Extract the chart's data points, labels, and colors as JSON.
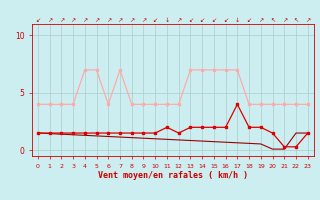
{
  "hours": [
    0,
    1,
    2,
    3,
    4,
    5,
    6,
    7,
    8,
    9,
    10,
    11,
    12,
    13,
    14,
    15,
    16,
    17,
    18,
    19,
    20,
    21,
    22,
    23
  ],
  "rafales": [
    4,
    4,
    4,
    4,
    7,
    7,
    4,
    7,
    4,
    4,
    4,
    4,
    4,
    7,
    7,
    7,
    7,
    7,
    4,
    4,
    4,
    4,
    4,
    4
  ],
  "vent_moyen": [
    1.5,
    1.5,
    1.5,
    1.5,
    1.5,
    1.5,
    1.5,
    1.5,
    1.5,
    1.5,
    1.5,
    2,
    1.5,
    2,
    2,
    2,
    2,
    4,
    2,
    2,
    1.5,
    0.3,
    0.3,
    1.5
  ],
  "tendance": [
    1.5,
    1.45,
    1.4,
    1.35,
    1.3,
    1.25,
    1.2,
    1.15,
    1.1,
    1.05,
    1.0,
    0.95,
    0.9,
    0.85,
    0.8,
    0.75,
    0.7,
    0.65,
    0.6,
    0.55,
    0.1,
    0.1,
    1.5,
    1.5
  ],
  "rafales_color": "#ffaaaa",
  "vent_moyen_color": "#dd0000",
  "tendance_color": "#990000",
  "bg_color": "#cceef0",
  "grid_color": "#aacccc",
  "xlabel": "Vent moyen/en rafales ( km/h )",
  "ylabel_ticks": [
    0,
    5,
    10
  ],
  "ylim": [
    -0.5,
    11
  ],
  "xlim": [
    -0.5,
    23.5
  ],
  "wind_dirs": [
    "↙",
    "↗",
    "↗",
    "↗",
    "↗",
    "↗",
    "↗",
    "↗",
    "↗",
    "↗",
    "↙",
    "↓",
    "↗",
    "↙",
    "↙",
    "↙",
    "↙",
    "↓",
    "↙",
    "↗",
    "↖",
    "↗",
    "↖",
    "↗"
  ],
  "axis_color": "#cc0000",
  "tick_color": "#cc0000"
}
